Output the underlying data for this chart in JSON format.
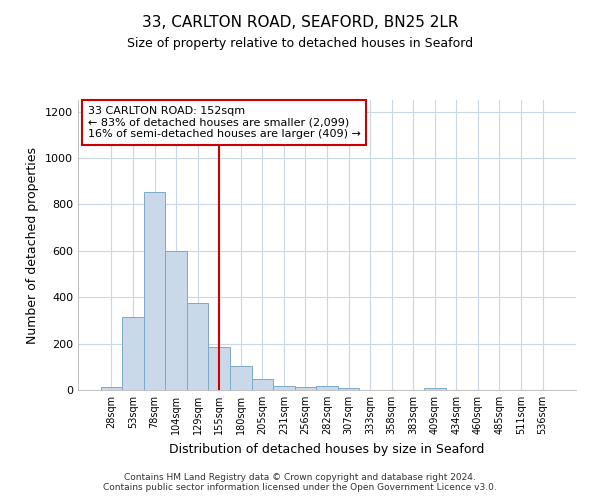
{
  "title1": "33, CARLTON ROAD, SEAFORD, BN25 2LR",
  "title2": "Size of property relative to detached houses in Seaford",
  "xlabel": "Distribution of detached houses by size in Seaford",
  "ylabel": "Number of detached properties",
  "bar_labels": [
    "28sqm",
    "53sqm",
    "78sqm",
    "104sqm",
    "129sqm",
    "155sqm",
    "180sqm",
    "205sqm",
    "231sqm",
    "256sqm",
    "282sqm",
    "307sqm",
    "333sqm",
    "358sqm",
    "383sqm",
    "409sqm",
    "434sqm",
    "460sqm",
    "485sqm",
    "511sqm",
    "536sqm"
  ],
  "bar_values": [
    13,
    313,
    855,
    600,
    375,
    185,
    105,
    47,
    18,
    15,
    18,
    10,
    0,
    0,
    0,
    8,
    0,
    0,
    0,
    0,
    0
  ],
  "bar_color": "#c9d9ea",
  "bar_edge_color": "#7aaac8",
  "vline_x": 5,
  "vline_color": "#cc0000",
  "annotation_text": "33 CARLTON ROAD: 152sqm\n← 83% of detached houses are smaller (2,099)\n16% of semi-detached houses are larger (409) →",
  "annotation_box_color": "#ffffff",
  "annotation_box_edge": "#cc0000",
  "ylim": [
    0,
    1250
  ],
  "yticks": [
    0,
    200,
    400,
    600,
    800,
    1000,
    1200
  ],
  "footer1": "Contains HM Land Registry data © Crown copyright and database right 2024.",
  "footer2": "Contains public sector information licensed under the Open Government Licence v3.0.",
  "bg_color": "#ffffff",
  "plot_bg_color": "#ffffff",
  "grid_color": "#c8d8e8",
  "title1_fontsize": 11,
  "title2_fontsize": 9
}
